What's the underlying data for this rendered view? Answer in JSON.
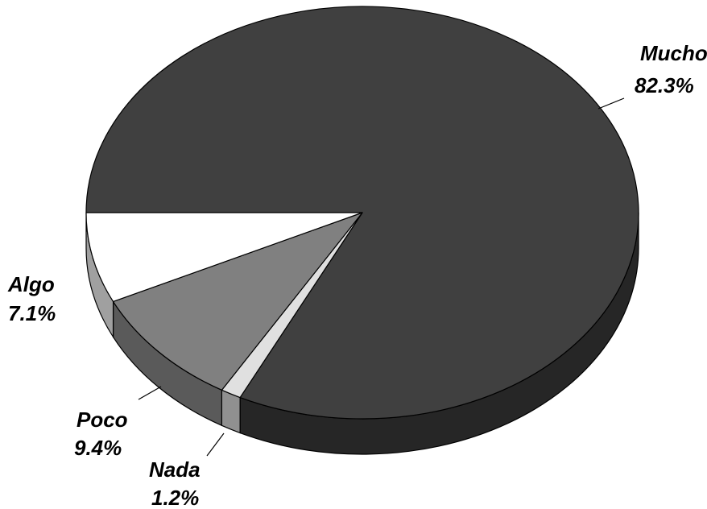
{
  "chart_data": {
    "type": "pie",
    "style": "3d",
    "categories": [
      "Mucho",
      "Nada",
      "Poco",
      "Algo"
    ],
    "values": [
      82.3,
      1.2,
      9.4,
      7.1
    ],
    "data_labels": [
      "82.3%",
      "1.2%",
      "9.4%",
      "7.1%"
    ],
    "colors": [
      "#404040",
      "#e0e0e0",
      "#808080",
      "#ffffff"
    ],
    "side_colors": [
      "#262626",
      "#909090",
      "#5a5a5a",
      "#a0a0a0"
    ],
    "title": "",
    "legend": "none"
  }
}
